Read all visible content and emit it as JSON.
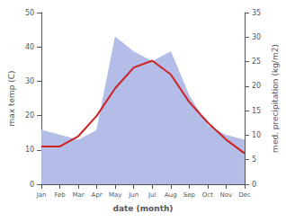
{
  "chart_data": {
    "type": "line",
    "xlabel": "date (month)",
    "ylabel": "max temp (C)",
    "y2label": "med. precipitation (kg/m2)",
    "categories": [
      "Jan",
      "Feb",
      "Mar",
      "Apr",
      "May",
      "Jun",
      "Jul",
      "Aug",
      "Sep",
      "Oct",
      "Nov",
      "Dec"
    ],
    "series": [
      {
        "type": "line",
        "color": "#cc2222",
        "values": [
          11,
          11,
          14,
          20,
          28,
          34,
          36,
          32,
          24,
          18,
          13,
          9
        ]
      },
      {
        "type": "area",
        "color": "#b3bde8",
        "axis": "y2",
        "values": [
          11,
          10,
          9,
          11,
          30,
          27,
          25,
          27,
          18,
          12,
          10,
          9
        ]
      }
    ],
    "ylim": [
      0,
      50
    ],
    "yticks": [
      0,
      10,
      20,
      30,
      40,
      50
    ],
    "y2lim": [
      0,
      35
    ],
    "y2ticks": [
      0,
      5,
      10,
      15,
      20,
      25,
      30,
      35
    ],
    "grid": false
  }
}
